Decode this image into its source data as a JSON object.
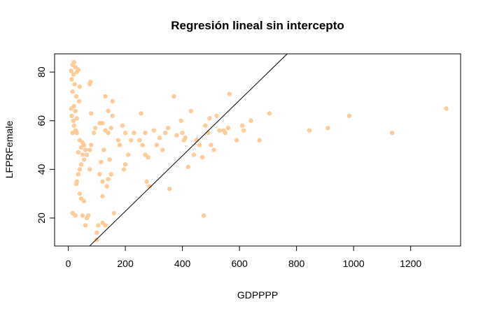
{
  "chart_data": {
    "type": "scatter",
    "title": "Regresión lineal sin intercepto",
    "x_label": "GDPPPP",
    "y_label": "LFPRFemale",
    "color": "#ffcc99",
    "xlim": [
      -48,
      1375
    ],
    "ylim": [
      8.5,
      87.5
    ],
    "xticks": [
      0,
      200,
      400,
      600,
      800,
      1000,
      1200
    ],
    "yticks": [
      20,
      40,
      60,
      80
    ],
    "fit_line": {
      "slope": 0.114
    },
    "x": [
      10,
      15,
      20,
      25,
      30,
      35,
      18,
      12,
      22,
      40,
      15,
      28,
      38,
      10,
      20,
      25,
      12,
      30,
      18,
      20,
      25,
      15,
      30,
      40,
      50,
      55,
      45,
      60,
      35,
      50,
      65,
      55,
      45,
      40,
      35,
      30,
      28,
      40,
      45,
      55,
      15,
      25,
      50,
      65,
      70,
      60,
      105,
      100,
      120,
      130,
      100,
      75,
      75,
      80,
      90,
      80,
      75,
      78,
      95,
      110,
      120,
      130,
      140,
      125,
      115,
      110,
      120,
      135,
      140,
      150,
      145,
      150,
      155,
      140,
      130,
      155,
      160,
      120,
      175,
      180,
      190,
      200,
      200,
      195,
      210,
      220,
      230,
      250,
      255,
      260,
      270,
      280,
      275,
      285,
      270,
      300,
      310,
      320,
      330,
      340,
      350,
      355,
      370,
      380,
      395,
      400,
      405,
      410,
      420,
      430,
      440,
      450,
      460,
      470,
      475,
      480,
      490,
      495,
      500,
      510,
      520,
      530,
      545,
      550,
      560,
      565,
      590,
      610,
      615,
      640,
      670,
      705,
      845,
      910,
      985,
      1135,
      1325
    ],
    "y": [
      80.5,
      83,
      84,
      82,
      80,
      81,
      79,
      77,
      75,
      74,
      72,
      70,
      68,
      65,
      66,
      64,
      62,
      61,
      60,
      58,
      56,
      55,
      55,
      52,
      51,
      50,
      49,
      48,
      47,
      46,
      46,
      44,
      42,
      40,
      38,
      35,
      34,
      30,
      28,
      27,
      22,
      21,
      21,
      20,
      21,
      17,
      17,
      14,
      18,
      17,
      11,
      40,
      48,
      50,
      55,
      63,
      75,
      76,
      57,
      59,
      59,
      56,
      55,
      48,
      43,
      38,
      35,
      33,
      36,
      38,
      44,
      57,
      62,
      64,
      70,
      68,
      22,
      29,
      52,
      50,
      58,
      55,
      42,
      40,
      46,
      52,
      55,
      52,
      63,
      50,
      55,
      45,
      35,
      33,
      46,
      56,
      50,
      53,
      48,
      55,
      57,
      32,
      70,
      54,
      60,
      55,
      52,
      53,
      41,
      64,
      46,
      52,
      50,
      45,
      21,
      58,
      55,
      61,
      50,
      48,
      62,
      56,
      56,
      55,
      57,
      71,
      52,
      58,
      56,
      60,
      52,
      63,
      56,
      57,
      62,
      55,
      65
    ]
  }
}
